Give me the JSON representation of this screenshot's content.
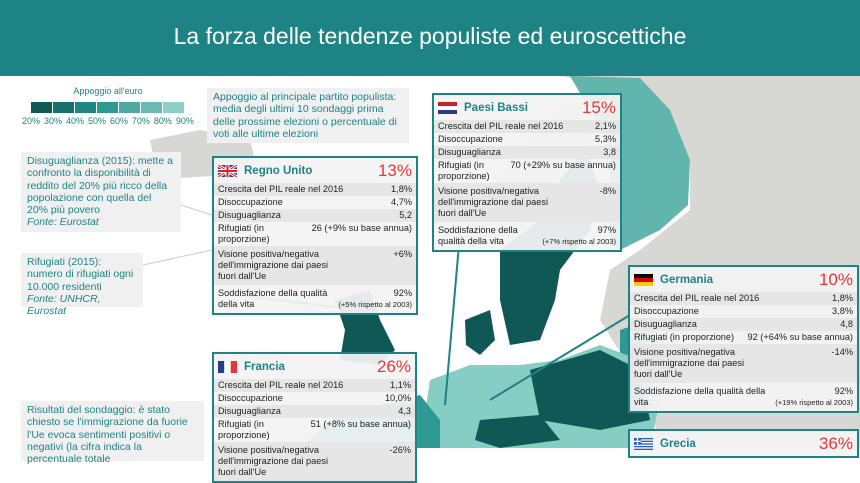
{
  "title": "La forza delle tendenze populiste ed euroscettiche",
  "legend": {
    "label": "Appoggio all'euro",
    "ticks": [
      "20%",
      "30%",
      "40%",
      "50%",
      "60%",
      "70%",
      "80%",
      "90%"
    ],
    "colors": [
      "#0f5856",
      "#17706d",
      "#1f8582",
      "#2e9893",
      "#4fa9a2",
      "#6dbab3",
      "#8ccfc6"
    ]
  },
  "notes": {
    "party": "Appoggio al principale partito populista: media degli ultimi 10 sondaggi prima delle prossime elezioni o percentuale di voti alle ultime elezioni",
    "inequality": "Disuguaglianza (2015): mette a confronto la disponibilità di reddito del 20% più ricco della popolazione con quella del 20% più povero",
    "inequality_source": "Fonte: Eurostat",
    "refugees": "Rifugiati (2015): numero di rifugiati ogni 10.000 residenti",
    "refugees_source": "Fonte: UNHCR, Eurostat",
    "survey": "Risultati del sondaggio: è stato chiesto se l'immigrazione da fuorie l'Ue evoca sentimenti positivi o negativi (la cifra indica la percentuale totale"
  },
  "row_labels": {
    "gdp": "Crescita del PIL reale nel 2016",
    "unemployment": "Disoccupazione",
    "inequality": "Disuguaglianza",
    "refugees": "Rifugiati (in proporzione)",
    "immigration": "Visione positiva/negativa dell'immigrazione dai paesi fuori dall'Ue",
    "satisfaction": "Soddisfazione della qualità della vita"
  },
  "countries": [
    {
      "id": "uk",
      "name": "Regno Unito",
      "flag": "uk-flag-icon",
      "populist_support": "13%",
      "gdp": "1,8%",
      "unemployment": "4,7%",
      "inequality": "5,2",
      "refugees": "26 (+9% su base annua)",
      "immigration": "+6%",
      "satisfaction": "92%",
      "satisfaction_change": "(+5% rispetto al 2003)"
    },
    {
      "id": "nl",
      "name": "Paesi Bassi",
      "flag": "netherlands-flag-icon",
      "populist_support": "15%",
      "gdp": "2,1%",
      "unemployment": "5,3%",
      "inequality": "3,8",
      "refugees": "70 (+29% su base annua)",
      "immigration": "-8%",
      "satisfaction": "97%",
      "satisfaction_change": "(+7% rispetto al 2003)"
    },
    {
      "id": "de",
      "name": "Germania",
      "flag": "germany-flag-icon",
      "populist_support": "10%",
      "gdp": "1,8%",
      "unemployment": "3,8%",
      "inequality": "4,8",
      "refugees": "92 (+64% su base annua)",
      "immigration": "-14%",
      "satisfaction": "92%",
      "satisfaction_change": "(+19% rispetto al 2003)"
    },
    {
      "id": "fr",
      "name": "Francia",
      "flag": "france-flag-icon",
      "populist_support": "26%",
      "gdp": "1,1%",
      "unemployment": "10,0%",
      "inequality": "4,3",
      "refugees": "51 (+8% su base annua)",
      "immigration": "-26%"
    },
    {
      "id": "gr",
      "name": "Grecia",
      "flag": "greece-flag-icon",
      "populist_support": "36%"
    }
  ],
  "colors": {
    "brand": "#1d8385",
    "accent": "#e8373a",
    "land": "#d7d7d3"
  }
}
